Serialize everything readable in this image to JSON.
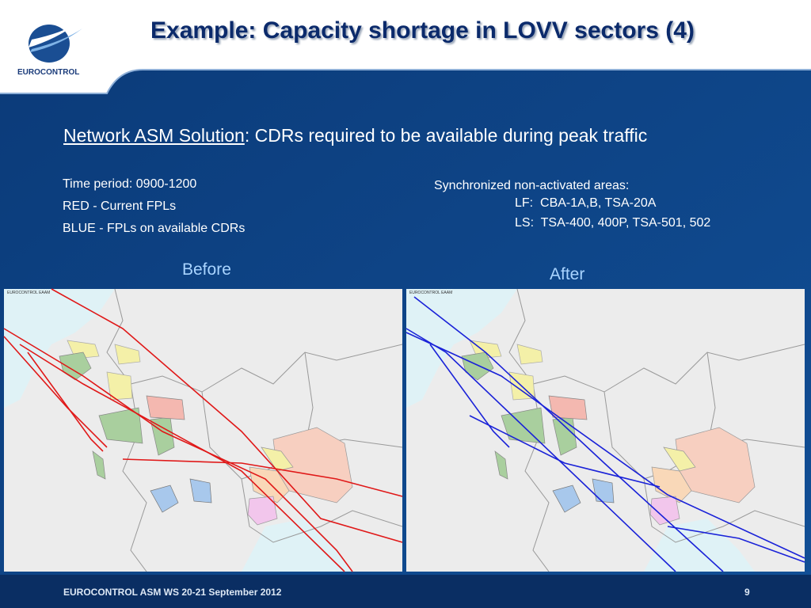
{
  "header": {
    "title": "Example: Capacity shortage in LOVV sectors (4)",
    "logo": "EUROCONTROL"
  },
  "subtitle": {
    "link": "Network ASM Solution",
    "rest": ": CDRs required to be available during peak traffic"
  },
  "left_notes": [
    "Time period: 0900-1200",
    "RED - Current FPLs",
    "BLUE - FPLs on available CDRs"
  ],
  "right_notes": {
    "heading": "Synchronized non-activated areas:",
    "lines": [
      "LF:  CBA-1A,B, TSA-20A",
      "LS:  TSA-400, 400P, TSA-501, 502"
    ]
  },
  "panels": [
    {
      "label": "Before",
      "map_caption": "EUROCONTROL EAAM"
    },
    {
      "label": "After",
      "map_caption": "EUROCONTROL EAAM"
    }
  ],
  "footer": {
    "text": "EUROCONTROL ASM WS 20-21 September 2012",
    "page": "9"
  }
}
